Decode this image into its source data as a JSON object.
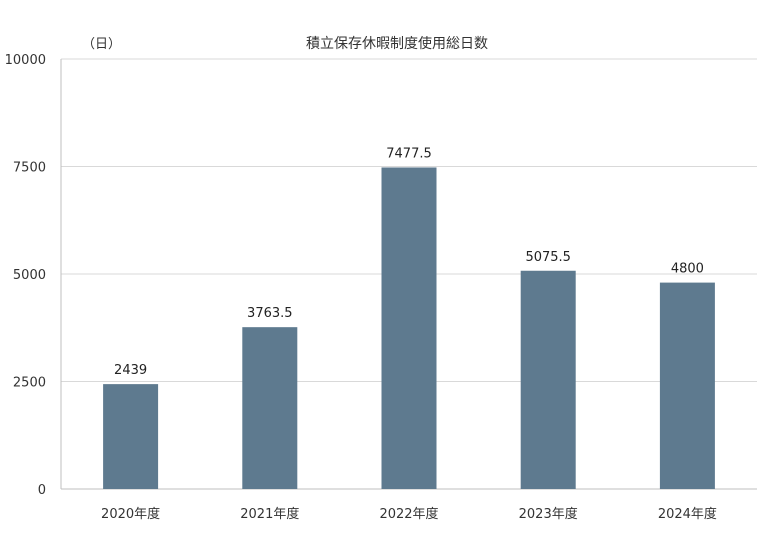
{
  "chart_data": {
    "type": "bar",
    "title": "積立保存休暇制度使用総日数",
    "unit_label": "（日）",
    "categories": [
      "2020年度",
      "2021年度",
      "2022年度",
      "2023年度",
      "2024年度"
    ],
    "values": [
      2439,
      3763.5,
      7477.5,
      5075.5,
      4800
    ],
    "data_labels": [
      "2439",
      "3763.5",
      "7477.5",
      "5075.5",
      "4800"
    ],
    "yticks": [
      "0",
      "2500",
      "5000",
      "7500",
      "10000"
    ],
    "ylim": [
      0,
      10000
    ],
    "grid": true,
    "bar_color": "#5e7a8f",
    "grid_color": "#d9d9d9"
  }
}
